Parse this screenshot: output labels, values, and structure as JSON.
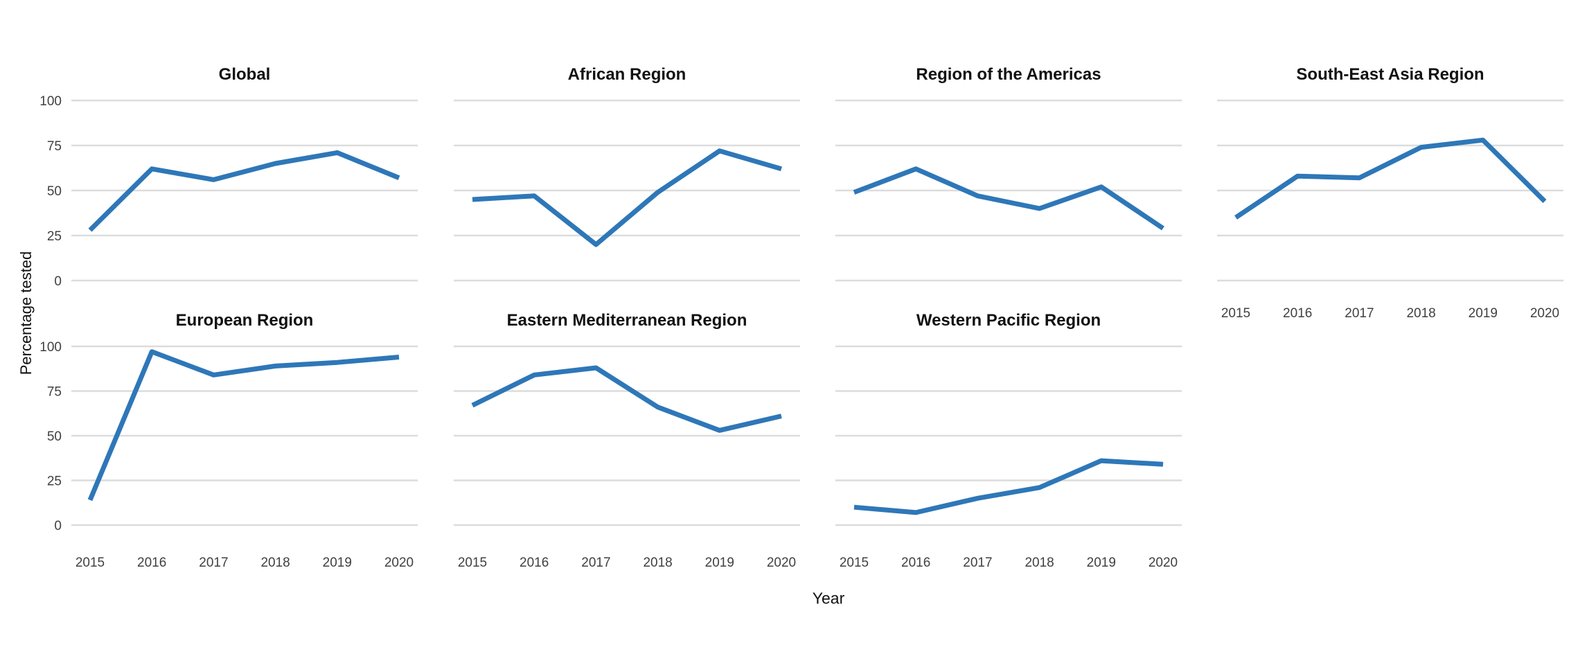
{
  "figure": {
    "background": "#ffffff",
    "x_axis_title": "Year",
    "y_axis_title": "Percentage tested"
  },
  "chart_data": {
    "type": "line",
    "x": [
      2015,
      2016,
      2017,
      2018,
      2019,
      2020
    ],
    "xlabel": "Year",
    "ylabel": "Percentage tested",
    "ylim": [
      0,
      100
    ],
    "y_ticks": [
      0,
      25,
      50,
      75,
      100
    ],
    "x_tick_labels": [
      "2015",
      "2016",
      "2017",
      "2018",
      "2019",
      "2020"
    ],
    "grid": "horizontal-only",
    "legend": "none",
    "line_color": "#2E77B8",
    "facets": [
      {
        "title": "Global",
        "values": [
          28,
          62,
          56,
          65,
          71,
          57
        ]
      },
      {
        "title": "African Region",
        "values": [
          45,
          47,
          20,
          49,
          72,
          62
        ]
      },
      {
        "title": "Region of the Americas",
        "values": [
          49,
          62,
          47,
          40,
          52,
          29
        ]
      },
      {
        "title": "South-East Asia Region",
        "values": [
          35,
          58,
          57,
          74,
          78,
          44
        ]
      },
      {
        "title": "European Region",
        "values": [
          14,
          97,
          84,
          89,
          91,
          94
        ]
      },
      {
        "title": "Eastern Mediterranean Region",
        "values": [
          67,
          84,
          88,
          66,
          53,
          61
        ]
      },
      {
        "title": "Western Pacific Region",
        "values": [
          10,
          7,
          15,
          21,
          36,
          34
        ]
      }
    ]
  },
  "colors": {
    "line": "#2E77B8",
    "gridline": "#DCDCDC",
    "tick_label": "#404040",
    "facet_title": "#111111"
  }
}
